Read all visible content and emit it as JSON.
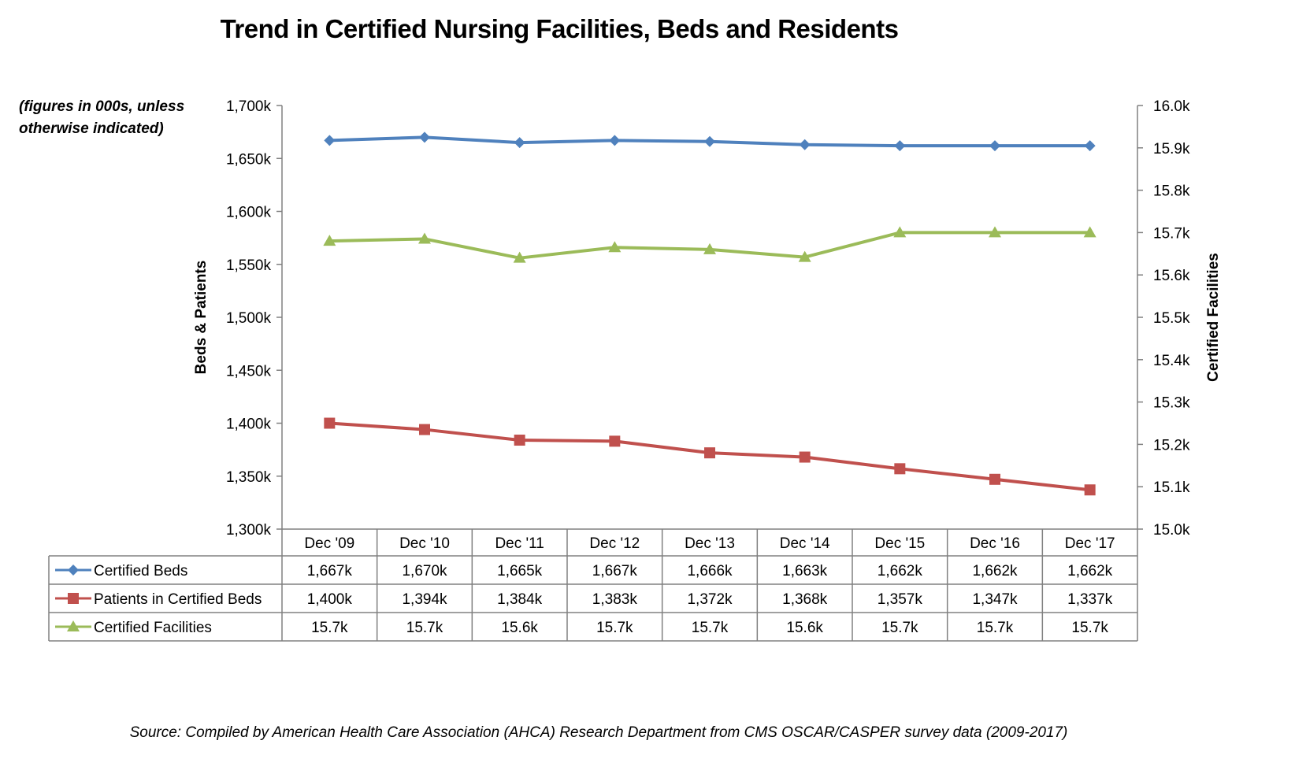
{
  "chart_data": {
    "type": "line",
    "title": "Trend in Certified Nursing Facilities, Beds and Residents",
    "note": "(figures in 000s, unless otherwise indicated)",
    "source": "Source: Compiled by American Health Care Association (AHCA) Research Department from CMS OSCAR/CASPER survey data (2009-2017)",
    "categories": [
      "Dec '09",
      "Dec '10",
      "Dec '11",
      "Dec '12",
      "Dec '13",
      "Dec '14",
      "Dec '15",
      "Dec '16",
      "Dec '17"
    ],
    "y_left": {
      "label": "Beds & Patients",
      "ylim": [
        1300,
        1700
      ],
      "ticks": [
        1300,
        1350,
        1400,
        1450,
        1500,
        1550,
        1600,
        1650,
        1700
      ],
      "tick_labels": [
        "1,300k",
        "1,350k",
        "1,400k",
        "1,450k",
        "1,500k",
        "1,550k",
        "1,600k",
        "1,650k",
        "1,700k"
      ]
    },
    "y_right": {
      "label": "Certified Facilities",
      "ylim": [
        15.0,
        16.0
      ],
      "ticks": [
        15.0,
        15.1,
        15.2,
        15.3,
        15.4,
        15.5,
        15.6,
        15.7,
        15.8,
        15.9,
        16.0
      ],
      "tick_labels": [
        "15.0k",
        "15.1k",
        "15.2k",
        "15.3k",
        "15.4k",
        "15.5k",
        "15.6k",
        "15.7k",
        "15.8k",
        "15.9k",
        "16.0k"
      ]
    },
    "series": [
      {
        "name": "Certified Beds",
        "axis": "left",
        "color": "#4F81BD",
        "marker": "diamond",
        "values": [
          1667,
          1670,
          1665,
          1667,
          1666,
          1663,
          1662,
          1662,
          1662
        ],
        "table_labels": [
          "1,667k",
          "1,670k",
          "1,665k",
          "1,667k",
          "1,666k",
          "1,663k",
          "1,662k",
          "1,662k",
          "1,662k"
        ]
      },
      {
        "name": "Patients in Certified Beds",
        "axis": "left",
        "color": "#C0504D",
        "marker": "square",
        "values": [
          1400,
          1394,
          1384,
          1383,
          1372,
          1368,
          1357,
          1347,
          1337
        ],
        "table_labels": [
          "1,400k",
          "1,394k",
          "1,384k",
          "1,383k",
          "1,372k",
          "1,368k",
          "1,357k",
          "1,347k",
          "1,337k"
        ]
      },
      {
        "name": "Certified Facilities",
        "axis": "right",
        "color": "#9BBB59",
        "marker": "triangle",
        "values": [
          15.68,
          15.685,
          15.64,
          15.665,
          15.66,
          15.642,
          15.7,
          15.7,
          15.7
        ],
        "table_labels": [
          "15.7k",
          "15.7k",
          "15.6k",
          "15.7k",
          "15.7k",
          "15.6k",
          "15.7k",
          "15.7k",
          "15.7k"
        ]
      }
    ],
    "grid": false,
    "legend": "data-table"
  }
}
